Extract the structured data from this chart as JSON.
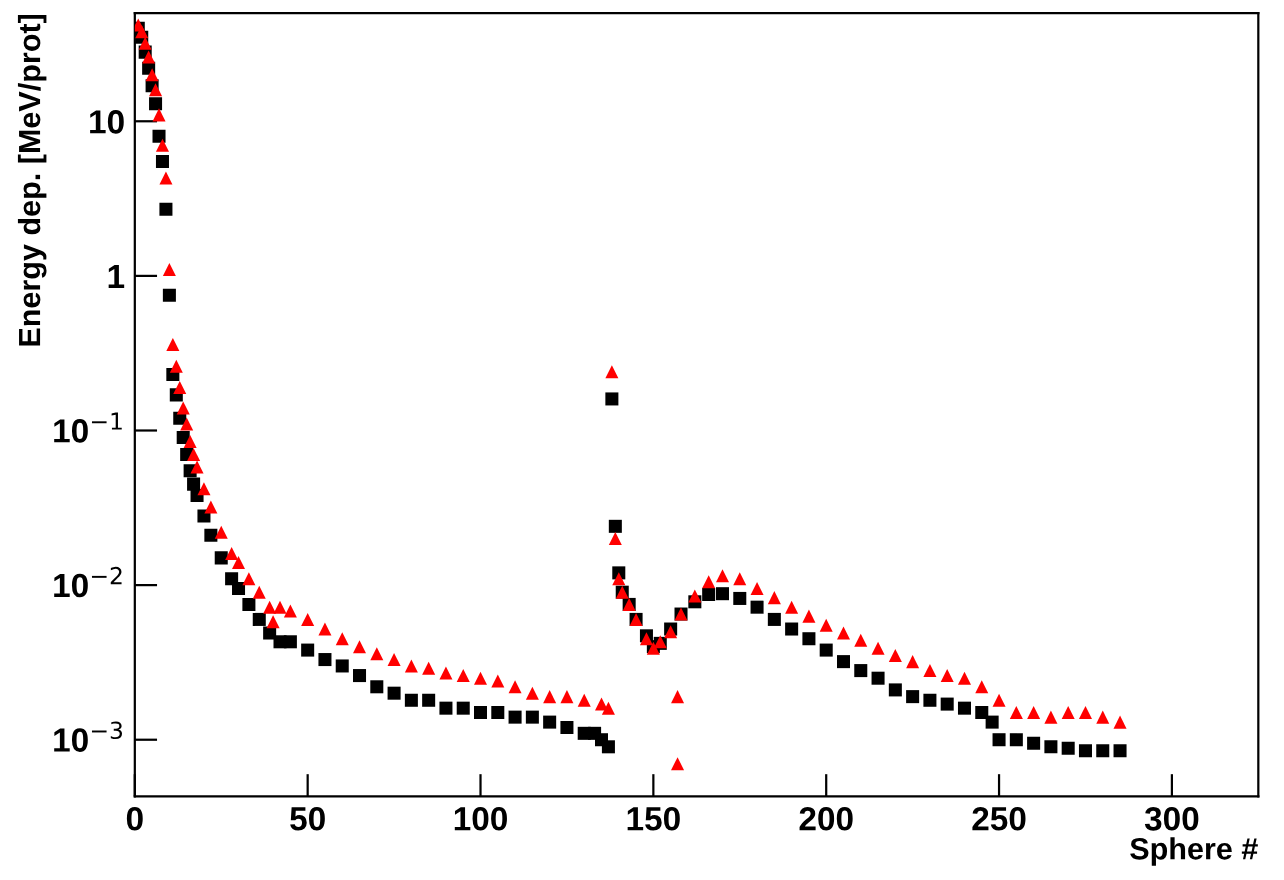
{
  "chart_data": {
    "type": "scatter",
    "xlabel": "Sphere #",
    "ylabel": "Energy dep. [MeV/prot]",
    "log": "y",
    "xlim": [
      0,
      325
    ],
    "xticks": [
      0,
      50,
      100,
      150,
      200,
      250,
      300
    ],
    "ylim": [
      0.00043,
      50
    ],
    "yticks": [
      {
        "value": 0.001,
        "label": "10$^{−3}$"
      },
      {
        "value": 0.01,
        "label": "10$^{−2}$"
      },
      {
        "value": 0.1,
        "label": "10$^{−1}$"
      },
      1,
      10
    ],
    "grid": false,
    "legend": false,
    "series": [
      {
        "color": "#000000",
        "marker": "square",
        "x": [
          1,
          2,
          3,
          4,
          5,
          6,
          7,
          8,
          9,
          10,
          11,
          12,
          13,
          14,
          15,
          16,
          17,
          18,
          20,
          22,
          25,
          28,
          30,
          33,
          36,
          39,
          42,
          45,
          50,
          55,
          60,
          65,
          70,
          75,
          80,
          85,
          90,
          95,
          100,
          105,
          110,
          115,
          120,
          125,
          130,
          133,
          135,
          137,
          138,
          139,
          140,
          141,
          143,
          145,
          148,
          150,
          152,
          155,
          158,
          162,
          166,
          170,
          175,
          180,
          185,
          190,
          195,
          200,
          205,
          210,
          215,
          220,
          225,
          230,
          235,
          240,
          245,
          248,
          250,
          255,
          260,
          265,
          270,
          275,
          280,
          285
        ],
        "values": [
          40,
          35,
          28,
          22,
          17,
          13,
          8,
          5.5,
          2.7,
          0.75,
          0.23,
          0.17,
          0.12,
          0.09,
          0.07,
          0.055,
          0.045,
          0.038,
          0.028,
          0.021,
          0.015,
          0.011,
          0.0095,
          0.0075,
          0.006,
          0.0049,
          0.0043,
          0.0043,
          0.0038,
          0.0033,
          0.003,
          0.0026,
          0.0022,
          0.002,
          0.0018,
          0.0018,
          0.0016,
          0.0016,
          0.0015,
          0.0015,
          0.0014,
          0.0014,
          0.0013,
          0.0012,
          0.0011,
          0.0011,
          0.001,
          0.0009,
          0.16,
          0.024,
          0.012,
          0.009,
          0.0075,
          0.006,
          0.0047,
          0.004,
          0.0042,
          0.0052,
          0.0065,
          0.0078,
          0.0087,
          0.0088,
          0.0082,
          0.0072,
          0.006,
          0.0052,
          0.0045,
          0.0038,
          0.0032,
          0.0028,
          0.0025,
          0.0021,
          0.0019,
          0.0018,
          0.0017,
          0.0016,
          0.0015,
          0.0013,
          0.001,
          0.001,
          0.00095,
          0.0009,
          0.00088,
          0.00085,
          0.00085,
          0.00085
        ]
      },
      {
        "color": "#ff0000",
        "marker": "triangle",
        "x": [
          1,
          2,
          3,
          4,
          5,
          6,
          7,
          8,
          9,
          10,
          11,
          12,
          13,
          14,
          15,
          16,
          17,
          18,
          20,
          22,
          25,
          28,
          30,
          33,
          36,
          39,
          40,
          42,
          45,
          50,
          55,
          60,
          65,
          70,
          75,
          80,
          85,
          90,
          95,
          100,
          105,
          110,
          115,
          120,
          125,
          130,
          135,
          137,
          138,
          139,
          140,
          141,
          143,
          145,
          148,
          150,
          152,
          155,
          157,
          157,
          158,
          162,
          166,
          170,
          175,
          180,
          185,
          190,
          195,
          200,
          205,
          210,
          215,
          220,
          225,
          230,
          235,
          240,
          245,
          250,
          255,
          260,
          265,
          270,
          275,
          280,
          285
        ],
        "values": [
          42,
          38,
          32,
          26,
          20,
          16,
          11,
          7,
          4.3,
          1.1,
          0.36,
          0.26,
          0.19,
          0.14,
          0.11,
          0.085,
          0.07,
          0.058,
          0.042,
          0.032,
          0.022,
          0.016,
          0.014,
          0.011,
          0.009,
          0.0072,
          0.0058,
          0.0072,
          0.0068,
          0.006,
          0.0052,
          0.0045,
          0.004,
          0.0036,
          0.0033,
          0.003,
          0.0029,
          0.0027,
          0.0026,
          0.0025,
          0.0024,
          0.0022,
          0.002,
          0.0019,
          0.0019,
          0.0018,
          0.0017,
          0.0016,
          0.24,
          0.02,
          0.011,
          0.009,
          0.0075,
          0.006,
          0.0045,
          0.0039,
          0.0043,
          0.005,
          0.0019,
          0.0007,
          0.0065,
          0.0085,
          0.0105,
          0.0115,
          0.011,
          0.0095,
          0.0083,
          0.0072,
          0.0063,
          0.0055,
          0.0049,
          0.0044,
          0.0039,
          0.0035,
          0.0032,
          0.0028,
          0.0026,
          0.0025,
          0.0022,
          0.0018,
          0.0015,
          0.0015,
          0.0014,
          0.0015,
          0.0015,
          0.0014,
          0.0013
        ]
      }
    ]
  }
}
